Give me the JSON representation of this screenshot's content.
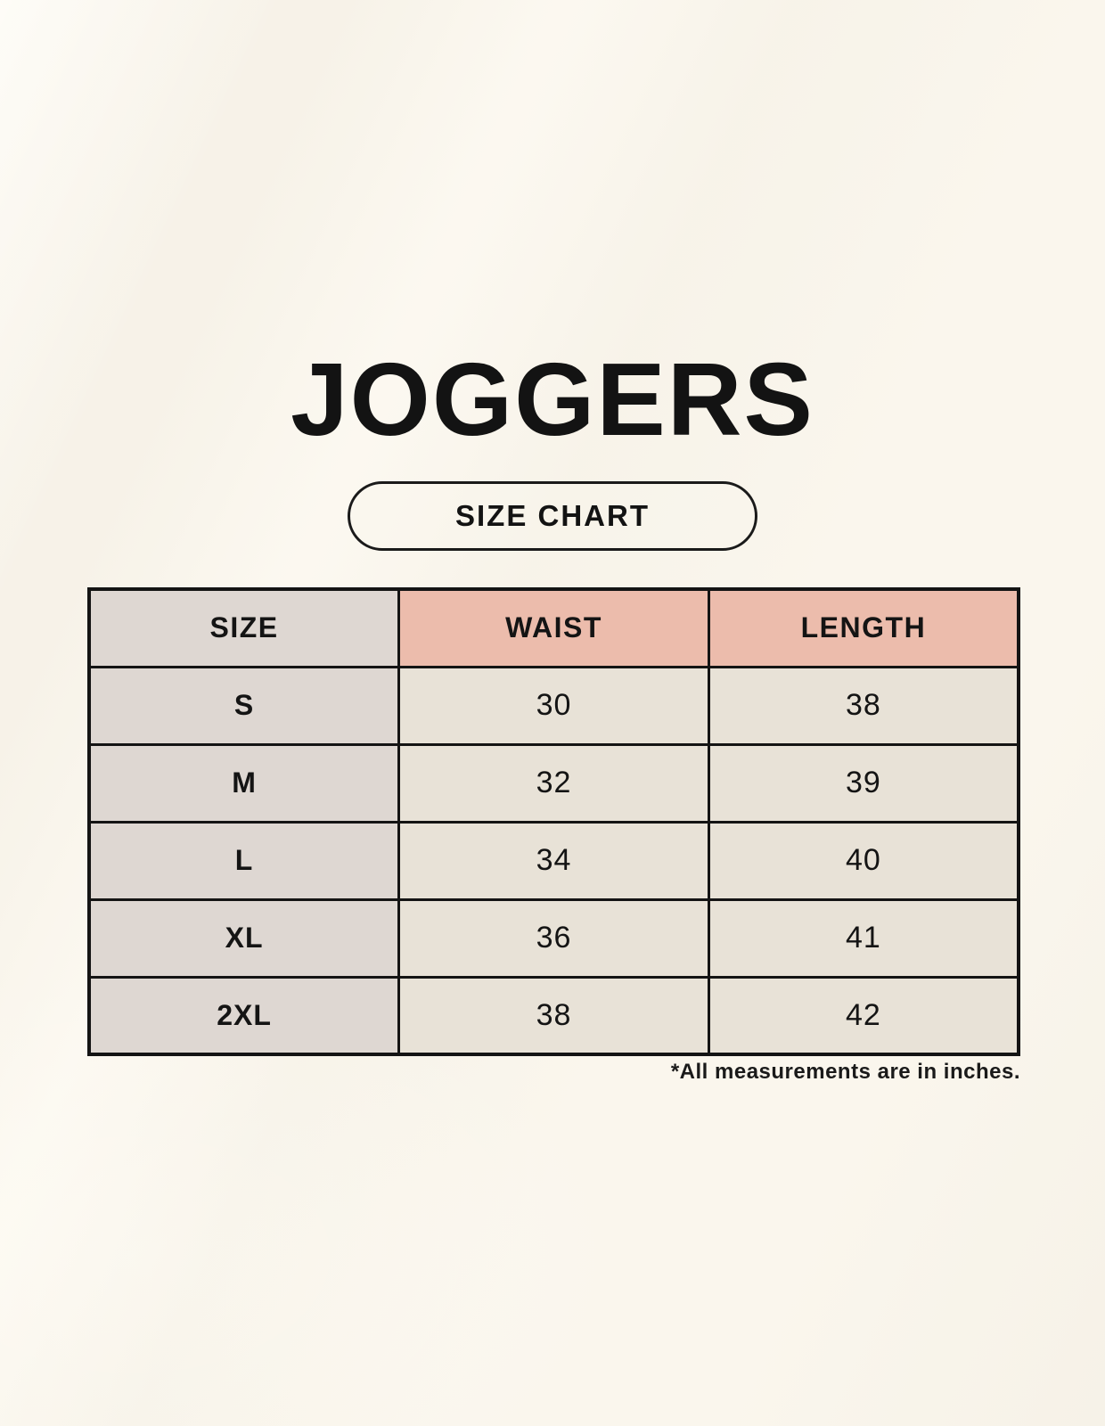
{
  "header": {
    "title": "JOGGERS",
    "badge_label": "SIZE CHART"
  },
  "chart_data": {
    "type": "table",
    "title": "JOGGERS",
    "subtitle": "SIZE CHART",
    "columns": [
      "SIZE",
      "WAIST",
      "LENGTH"
    ],
    "rows": [
      [
        "S",
        "30",
        "38"
      ],
      [
        "M",
        "32",
        "39"
      ],
      [
        "L",
        "34",
        "40"
      ],
      [
        "XL",
        "36",
        "41"
      ],
      [
        "2XL",
        "38",
        "42"
      ]
    ],
    "footnote": "*All measurements are in inches."
  },
  "colors": {
    "background_cream": "#faf6ed",
    "header_pink": "#ecbcac",
    "size_column_taupe": "#ded7d2",
    "cell_cream": "#e8e2d7",
    "border_black": "#141414"
  }
}
